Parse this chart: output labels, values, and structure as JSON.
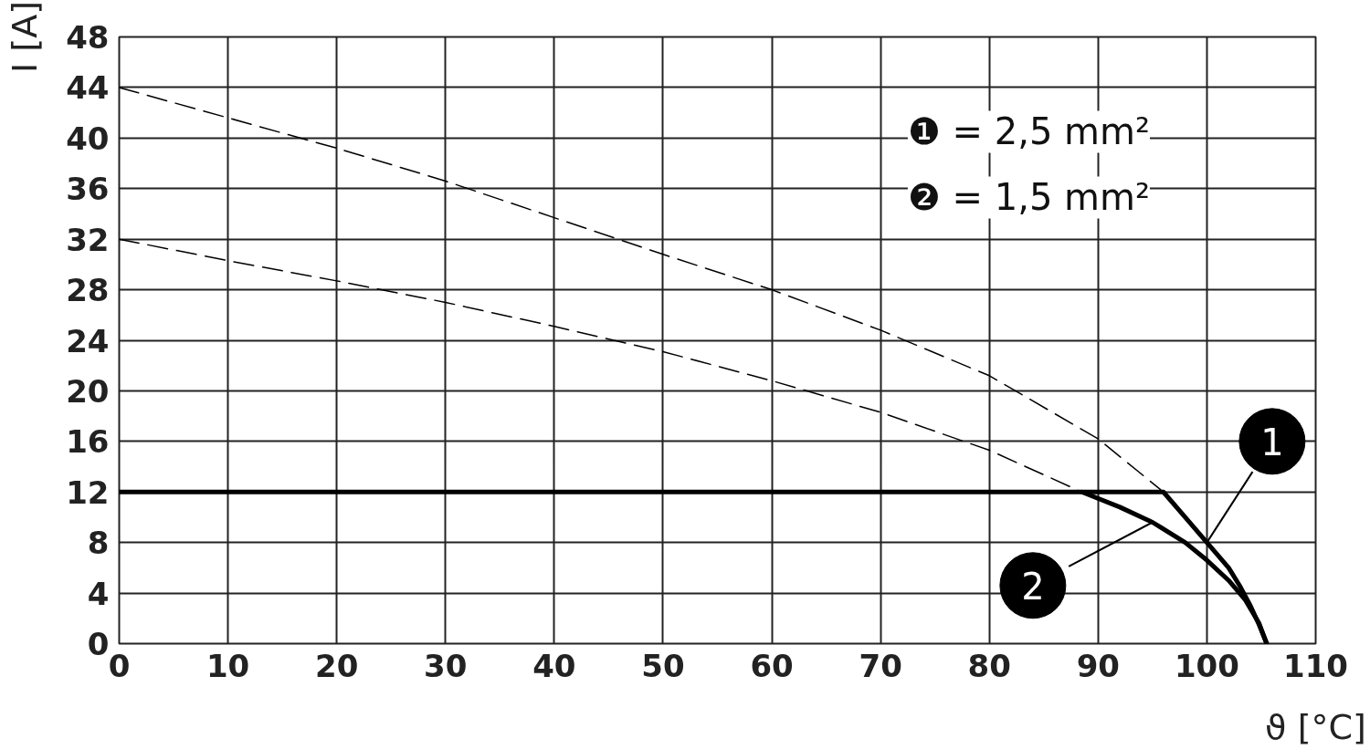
{
  "chart_data": {
    "type": "line",
    "xlabel": "ϑ [°C]",
    "ylabel": "I [A]",
    "xlim": [
      0,
      110
    ],
    "xticks": [
      0,
      10,
      20,
      30,
      40,
      50,
      60,
      70,
      80,
      90,
      100,
      110
    ],
    "ylim": [
      0,
      48
    ],
    "yticks": [
      0,
      4,
      8,
      12,
      16,
      20,
      24,
      28,
      32,
      36,
      40,
      44,
      48
    ],
    "grid": true,
    "series": [
      {
        "color": "#000000",
        "line_style": "dashed",
        "x": [
          0,
          10,
          20,
          30,
          40,
          50,
          60,
          70,
          80,
          90,
          96
        ],
        "values": [
          44,
          41.6,
          39.2,
          36.6,
          33.7,
          30.8,
          28,
          24.8,
          21.2,
          16.2,
          12
        ]
      },
      {
        "color": "#000000",
        "line_style": "dashed",
        "x": [
          0,
          10,
          20,
          30,
          40,
          50,
          60,
          70,
          80,
          88.5
        ],
        "values": [
          32,
          30.3,
          28.7,
          27,
          25.1,
          23.1,
          20.8,
          18.3,
          15.3,
          12
        ]
      },
      {
        "name": "1",
        "color": "#000000",
        "line_style": "solid",
        "x": [
          0,
          96,
          98,
          100,
          102,
          103,
          104,
          104.8,
          105.5
        ],
        "values": [
          12,
          12,
          10,
          8,
          6,
          4.6,
          3,
          1.5,
          0
        ]
      },
      {
        "name": "2",
        "color": "#000000",
        "line_style": "solid",
        "x": [
          88.5,
          92,
          95,
          98,
          100,
          102,
          103.5,
          104.8,
          105.5
        ],
        "values": [
          12,
          10.8,
          9.6,
          8,
          6.6,
          5,
          3.5,
          1.6,
          0
        ]
      }
    ],
    "annotations": [
      "❶ = 2,5 mm²",
      "❷ = 1,5 mm²"
    ]
  }
}
